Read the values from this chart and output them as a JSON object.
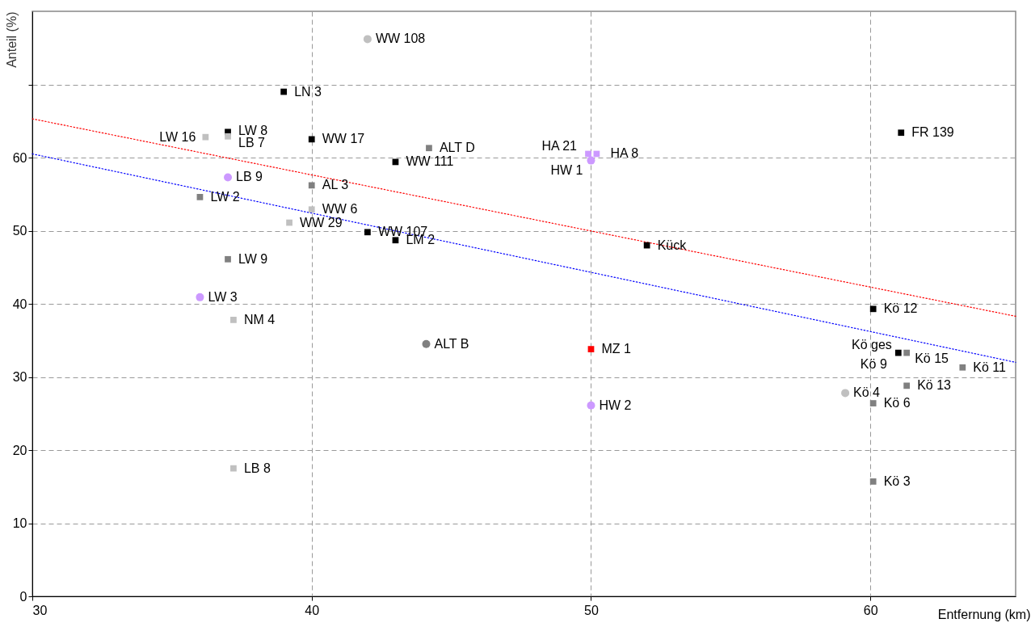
{
  "chart_data": {
    "type": "scatter",
    "xlabel": "Entfernung (km)",
    "ylabel": "Anteil (%)",
    "xlim": [
      30,
      65.2
    ],
    "xticks": [
      30,
      40,
      50,
      60
    ],
    "ylim": [
      0,
      80
    ],
    "yticks": [
      0,
      10,
      20,
      30,
      40,
      50,
      60,
      {
        "value": 70,
        "label": null
      }
    ],
    "grid": true,
    "series": [
      {
        "type": "line",
        "color": "#ff0000",
        "line_style": "dotted",
        "x": [
          30,
          65.2
        ],
        "values": [
          65.3,
          38.3
        ]
      },
      {
        "type": "line",
        "color": "#0000ff",
        "line_style": "dotted",
        "x": [
          30,
          65.2
        ],
        "values": [
          60.5,
          32.0
        ]
      },
      {
        "color": "#000000",
        "marker": "square",
        "x": [
          39,
          37,
          40,
          43,
          61.1,
          42,
          43,
          52,
          60.1,
          61.0
        ],
        "values": [
          69.0,
          63.5,
          62.5,
          59.4,
          63.4,
          49.8,
          48.7,
          48.0,
          39.3,
          33.3
        ]
      },
      {
        "color": "#808080",
        "marker": "square",
        "x": [
          44.2,
          36,
          40,
          37,
          61.3,
          63.3,
          61.3,
          60.1,
          60.1
        ],
        "values": [
          61.3,
          54.6,
          56.2,
          46.1,
          33.3,
          31.3,
          28.8,
          26.4,
          15.7
        ]
      },
      {
        "color": "#c0c0c0",
        "marker": "square",
        "x": [
          36.2,
          37,
          40,
          39.2,
          37.2,
          37.2
        ],
        "values": [
          62.8,
          62.9,
          52.9,
          51.1,
          37.8,
          17.5
        ]
      },
      {
        "color": "#cc99ff",
        "marker": "square",
        "x": [
          49.9,
          50.2
        ],
        "values": [
          60.5,
          60.5
        ]
      },
      {
        "color": "#ff0000",
        "marker": "square",
        "x": [
          50
        ],
        "values": [
          33.8
        ]
      },
      {
        "color": "#cc99ff",
        "marker": "circle",
        "x": [
          37,
          50,
          36,
          50
        ],
        "values": [
          57.3,
          59.6,
          40.9,
          26.1
        ]
      },
      {
        "color": "#c0c0c0",
        "marker": "circle",
        "x": [
          42,
          59.1
        ],
        "values": [
          76.2,
          27.8
        ]
      },
      {
        "color": "#808080",
        "marker": "circle",
        "x": [
          44.1
        ],
        "values": [
          34.5
        ]
      }
    ],
    "annotations": [
      {
        "text": "WW 108",
        "x": 42,
        "y": 76.2
      },
      {
        "text": "LN 3",
        "x": 39,
        "y": 69.0
      },
      {
        "text": "LW 16",
        "x": 36.2,
        "y": 62.8
      },
      {
        "text": "LW 8",
        "x": 37,
        "y": 63.5
      },
      {
        "text": "LB 7",
        "x": 37,
        "y": 62.9
      },
      {
        "text": "WW 17",
        "x": 40,
        "y": 62.5
      },
      {
        "text": "ALT D",
        "x": 44.2,
        "y": 61.3
      },
      {
        "text": "WW 111",
        "x": 43,
        "y": 59.4
      },
      {
        "text": "HA 21",
        "x": 49.9,
        "y": 60.5
      },
      {
        "text": "HA 8",
        "x": 50.2,
        "y": 60.5
      },
      {
        "text": "HW 1",
        "x": 50,
        "y": 59.6
      },
      {
        "text": "FR 139",
        "x": 61.1,
        "y": 63.4
      },
      {
        "text": "LB 9",
        "x": 37,
        "y": 57.3
      },
      {
        "text": "LW 2",
        "x": 36,
        "y": 54.6
      },
      {
        "text": "AL 3",
        "x": 40,
        "y": 56.2
      },
      {
        "text": "WW 6",
        "x": 40,
        "y": 52.9
      },
      {
        "text": "WW 29",
        "x": 39.2,
        "y": 51.1
      },
      {
        "text": "WW 107",
        "x": 42,
        "y": 49.8
      },
      {
        "text": "LM 2",
        "x": 43,
        "y": 48.7
      },
      {
        "text": "Kück",
        "x": 52,
        "y": 48.0
      },
      {
        "text": "LW 9",
        "x": 37,
        "y": 46.1
      },
      {
        "text": "LW 3",
        "x": 36,
        "y": 40.9
      },
      {
        "text": "NM 4",
        "x": 37.2,
        "y": 37.8
      },
      {
        "text": "ALT B",
        "x": 44.1,
        "y": 34.5
      },
      {
        "text": "MZ 1",
        "x": 50,
        "y": 33.8
      },
      {
        "text": "HW 2",
        "x": 50,
        "y": 26.1
      },
      {
        "text": "LB 8",
        "x": 37.2,
        "y": 17.5
      },
      {
        "text": "Kö 12",
        "x": 60.1,
        "y": 39.3
      },
      {
        "text": "Kö ges",
        "x": 61.0,
        "y": 33.3
      },
      {
        "text": "Kö 15",
        "x": 61.3,
        "y": 33.3
      },
      {
        "text": "Kö 9",
        "x": 61.0,
        "y": 33.3
      },
      {
        "text": "Kö 11",
        "x": 63.3,
        "y": 31.3
      },
      {
        "text": "Kö 13",
        "x": 61.3,
        "y": 28.8
      },
      {
        "text": "Kö 4",
        "x": 59.1,
        "y": 27.8
      },
      {
        "text": "Kö 6",
        "x": 60.1,
        "y": 26.4
      },
      {
        "text": "Kö 3",
        "x": 60.1,
        "y": 15.7
      }
    ]
  }
}
